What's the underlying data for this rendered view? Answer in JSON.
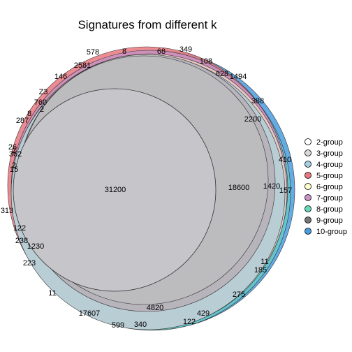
{
  "title": "Signatures from different k",
  "legend": [
    {
      "label": "2-group",
      "color": "#ffffff"
    },
    {
      "label": "3-group",
      "color": "#d9d9d9"
    },
    {
      "label": "4-group",
      "color": "#a6cee3"
    },
    {
      "label": "5-group",
      "color": "#e8787f"
    },
    {
      "label": "6-group",
      "color": "#ffffcc"
    },
    {
      "label": "7-group",
      "color": "#c994c7"
    },
    {
      "label": "8-group",
      "color": "#66d9b8"
    },
    {
      "label": "9-group",
      "color": "#777777"
    },
    {
      "label": "10-group",
      "color": "#4a9ee0"
    }
  ],
  "region_labels": [
    "578",
    "8",
    "68",
    "349",
    "2581",
    "108",
    "146",
    "828",
    "1494",
    "Z3",
    "388",
    "760",
    "2",
    "8",
    "2200",
    "287",
    "26",
    "2",
    "362",
    "410",
    "2",
    "15",
    "31200",
    "18600",
    "1420",
    "157",
    "313",
    "122",
    "238",
    "1230",
    "223",
    "11",
    "185",
    "11",
    "275",
    "4820",
    "17607",
    "429",
    "122",
    "599",
    "340"
  ]
}
